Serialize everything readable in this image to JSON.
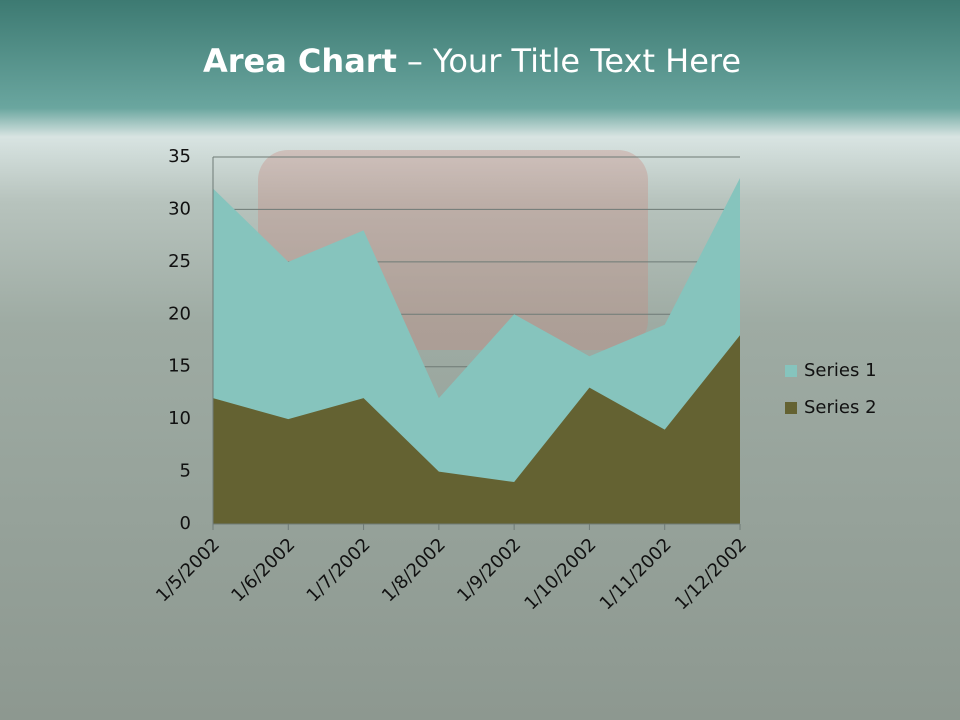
{
  "chart_data": {
    "type": "area",
    "title": [
      "Area Chart",
      "– Your Title Text Here"
    ],
    "categories": [
      "1/5/2002",
      "1/6/2002",
      "1/7/2002",
      "1/8/2002",
      "1/9/2002",
      "1/10/2002",
      "1/11/2002",
      "1/12/2002"
    ],
    "series": [
      {
        "name": "Series 1",
        "color": "#86c4bd",
        "values": [
          32,
          25,
          28,
          12,
          20,
          16,
          19,
          33
        ]
      },
      {
        "name": "Series 2",
        "color": "#646232",
        "values": [
          12,
          10,
          12,
          5,
          4,
          13,
          9,
          18
        ]
      }
    ],
    "ylim": [
      0,
      35
    ],
    "yticks": [
      0,
      5,
      10,
      15,
      20,
      25,
      30,
      35
    ],
    "grid": true,
    "legend": "right"
  }
}
